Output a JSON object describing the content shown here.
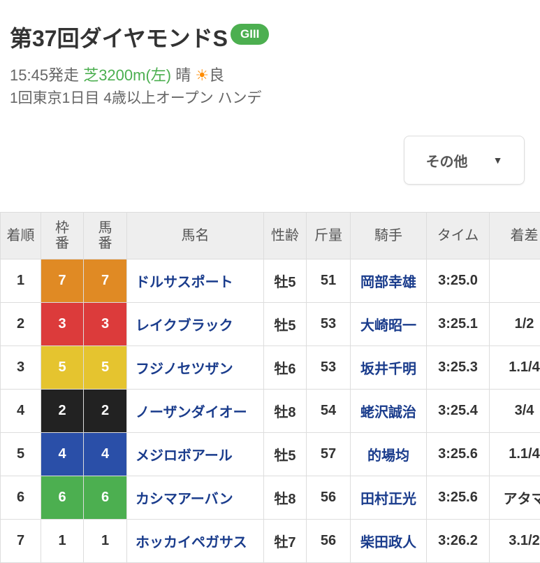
{
  "race": {
    "title": "第37回ダイヤモンドS",
    "grade": "GIII",
    "start": "15:45発走",
    "course": "芝3200m(左)",
    "weather": "晴",
    "weather_icon": "sun-icon",
    "going": "良",
    "info": "1回東京1日目  4歳以上オープン ハンデ"
  },
  "other_button": {
    "label": "その他",
    "caret": "▼"
  },
  "table": {
    "headers": [
      "着順",
      "枠\n番",
      "馬\n番",
      "馬名",
      "性齢",
      "斤量",
      "騎手",
      "タイム",
      "着差"
    ],
    "rows": [
      {
        "rank": "1",
        "waku": "7",
        "umaban": "7",
        "name": "ドルサスポート",
        "sexage": "牡5",
        "weight": "51",
        "jockey": "岡部幸雄",
        "time": "3:25.0",
        "margin": "",
        "color": "#e08a24"
      },
      {
        "rank": "2",
        "waku": "3",
        "umaban": "3",
        "name": "レイクブラック",
        "sexage": "牡5",
        "weight": "53",
        "jockey": "大崎昭一",
        "time": "3:25.1",
        "margin": "1/2",
        "color": "#dc3b3b"
      },
      {
        "rank": "3",
        "waku": "5",
        "umaban": "5",
        "name": "フジノセツザン",
        "sexage": "牡6",
        "weight": "53",
        "jockey": "坂井千明",
        "time": "3:25.3",
        "margin": "1.1/4",
        "color": "#e5c42f"
      },
      {
        "rank": "4",
        "waku": "2",
        "umaban": "2",
        "name": "ノーザンダイオー",
        "sexage": "牡8",
        "weight": "54",
        "jockey": "蛯沢誠治",
        "time": "3:25.4",
        "margin": "3/4",
        "color": "#222222"
      },
      {
        "rank": "5",
        "waku": "4",
        "umaban": "4",
        "name": "メジロボアール",
        "sexage": "牡5",
        "weight": "57",
        "jockey": "的場均",
        "time": "3:25.6",
        "margin": "1.1/4",
        "color": "#2a4fa8"
      },
      {
        "rank": "6",
        "waku": "6",
        "umaban": "6",
        "name": "カシマアーバン",
        "sexage": "牡8",
        "weight": "56",
        "jockey": "田村正光",
        "time": "3:25.6",
        "margin": "アタマ",
        "color": "#4caf50"
      },
      {
        "rank": "7",
        "waku": "1",
        "umaban": "1",
        "name": "ホッカイペガサス",
        "sexage": "牡7",
        "weight": "56",
        "jockey": "柴田政人",
        "time": "3:26.2",
        "margin": "3.1/2",
        "color": "#ffffff"
      }
    ]
  }
}
